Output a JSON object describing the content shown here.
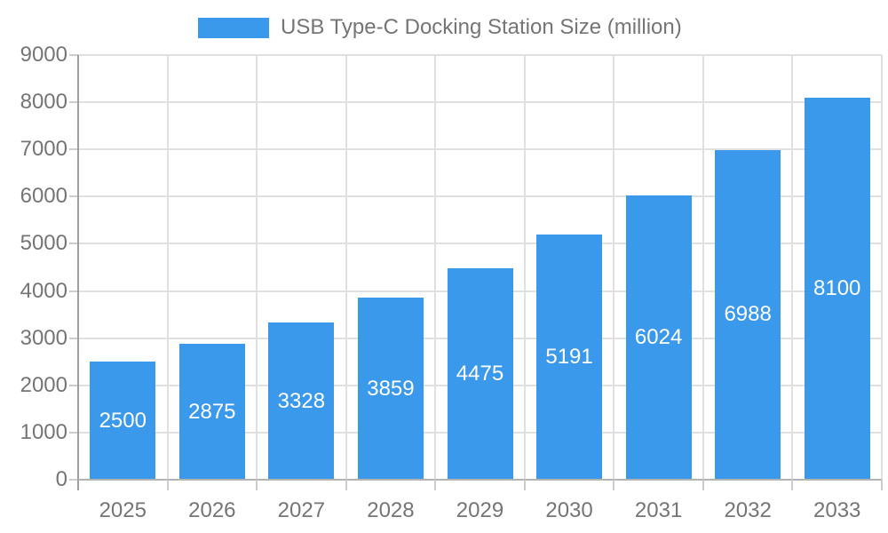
{
  "colors": {
    "accent": "#3B99EC",
    "label": "#757575",
    "grid": "#E0E0E0",
    "axis": "#9E9E9E",
    "baseline": "#B3B3B3",
    "tick": "#CCCCCC",
    "bar_label": "#FFFFFF"
  },
  "legend": {
    "label": "USB Type-C Docking Station Size (million)"
  },
  "chart_data": {
    "type": "bar",
    "title": "USB Type-C Docking Station Size (million)",
    "categories": [
      "2025",
      "2026",
      "2027",
      "2028",
      "2029",
      "2030",
      "2031",
      "2032",
      "2033"
    ],
    "values": [
      2500,
      2875,
      3328,
      3859,
      4475,
      5191,
      6024,
      6988,
      8100
    ],
    "xlabel": "",
    "ylabel": "",
    "ylim": [
      0,
      9000
    ],
    "ytick_step": 1000,
    "grid": true,
    "legend_position": "top",
    "bar_value_labels": true
  }
}
